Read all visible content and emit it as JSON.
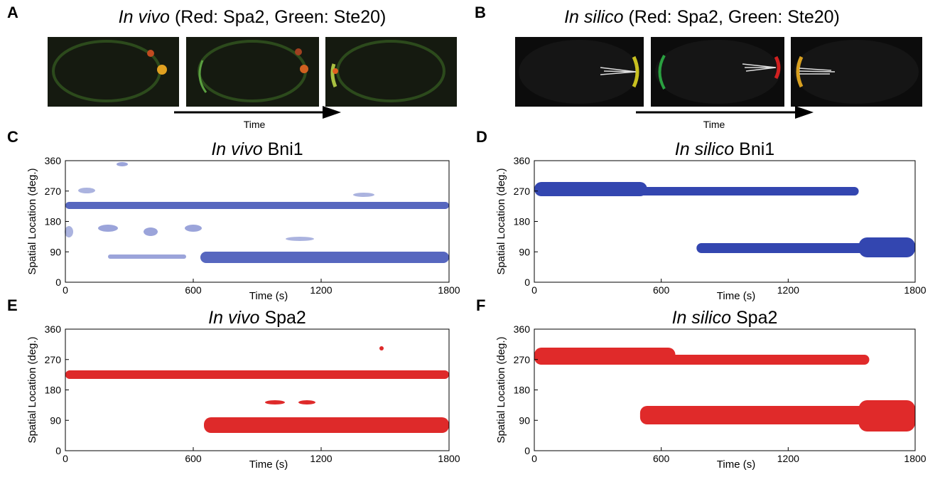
{
  "panels": [
    {
      "letter": "A",
      "title_italic": "In vivo",
      "title_rest": "(Red: Spa2, Green: Ste20)",
      "arrow_label": "Time"
    },
    {
      "letter": "B",
      "title_italic": "In silico",
      "title_rest": "(Red: Spa2, Green: Ste20)",
      "arrow_label": "Time"
    }
  ],
  "charts": [
    {
      "letter": "C",
      "title_italic": "In vivo",
      "title_rest": "Bni1",
      "ylabel": "Spatial Location (deg.)",
      "xlabel": "Time (s)",
      "xlim": [
        0,
        1800
      ],
      "ylim": [
        0,
        360
      ],
      "xticks": [
        0,
        600,
        1200,
        1800
      ],
      "yticks": [
        0,
        90,
        180,
        270,
        360
      ],
      "color": "#3a4db5"
    },
    {
      "letter": "D",
      "title_italic": "In silico",
      "title_rest": "Bni1",
      "ylabel": "Spatial Location (deg.)",
      "xlabel": "Time (s)",
      "xlim": [
        0,
        1800
      ],
      "ylim": [
        0,
        360
      ],
      "xticks": [
        0,
        600,
        1200,
        1800
      ],
      "yticks": [
        0,
        90,
        180,
        270,
        360
      ],
      "color": "#3346b0"
    },
    {
      "letter": "E",
      "title_italic": "In vivo",
      "title_rest": "Spa2",
      "ylabel": "Spatial Location (deg.)",
      "xlabel": "Time (s)",
      "xlim": [
        0,
        1800
      ],
      "ylim": [
        0,
        360
      ],
      "xticks": [
        0,
        600,
        1200,
        1800
      ],
      "yticks": [
        0,
        90,
        180,
        270,
        360
      ],
      "color": "#de2a2a"
    },
    {
      "letter": "F",
      "title_italic": "In silico",
      "title_rest": "Spa2",
      "ylabel": "Spatial Location (deg.)",
      "xlabel": "Time (s)",
      "xlim": [
        0,
        1800
      ],
      "ylim": [
        0,
        360
      ],
      "xticks": [
        0,
        600,
        1200,
        1800
      ],
      "yticks": [
        0,
        90,
        180,
        270,
        360
      ],
      "color": "#e02a2a"
    }
  ]
}
